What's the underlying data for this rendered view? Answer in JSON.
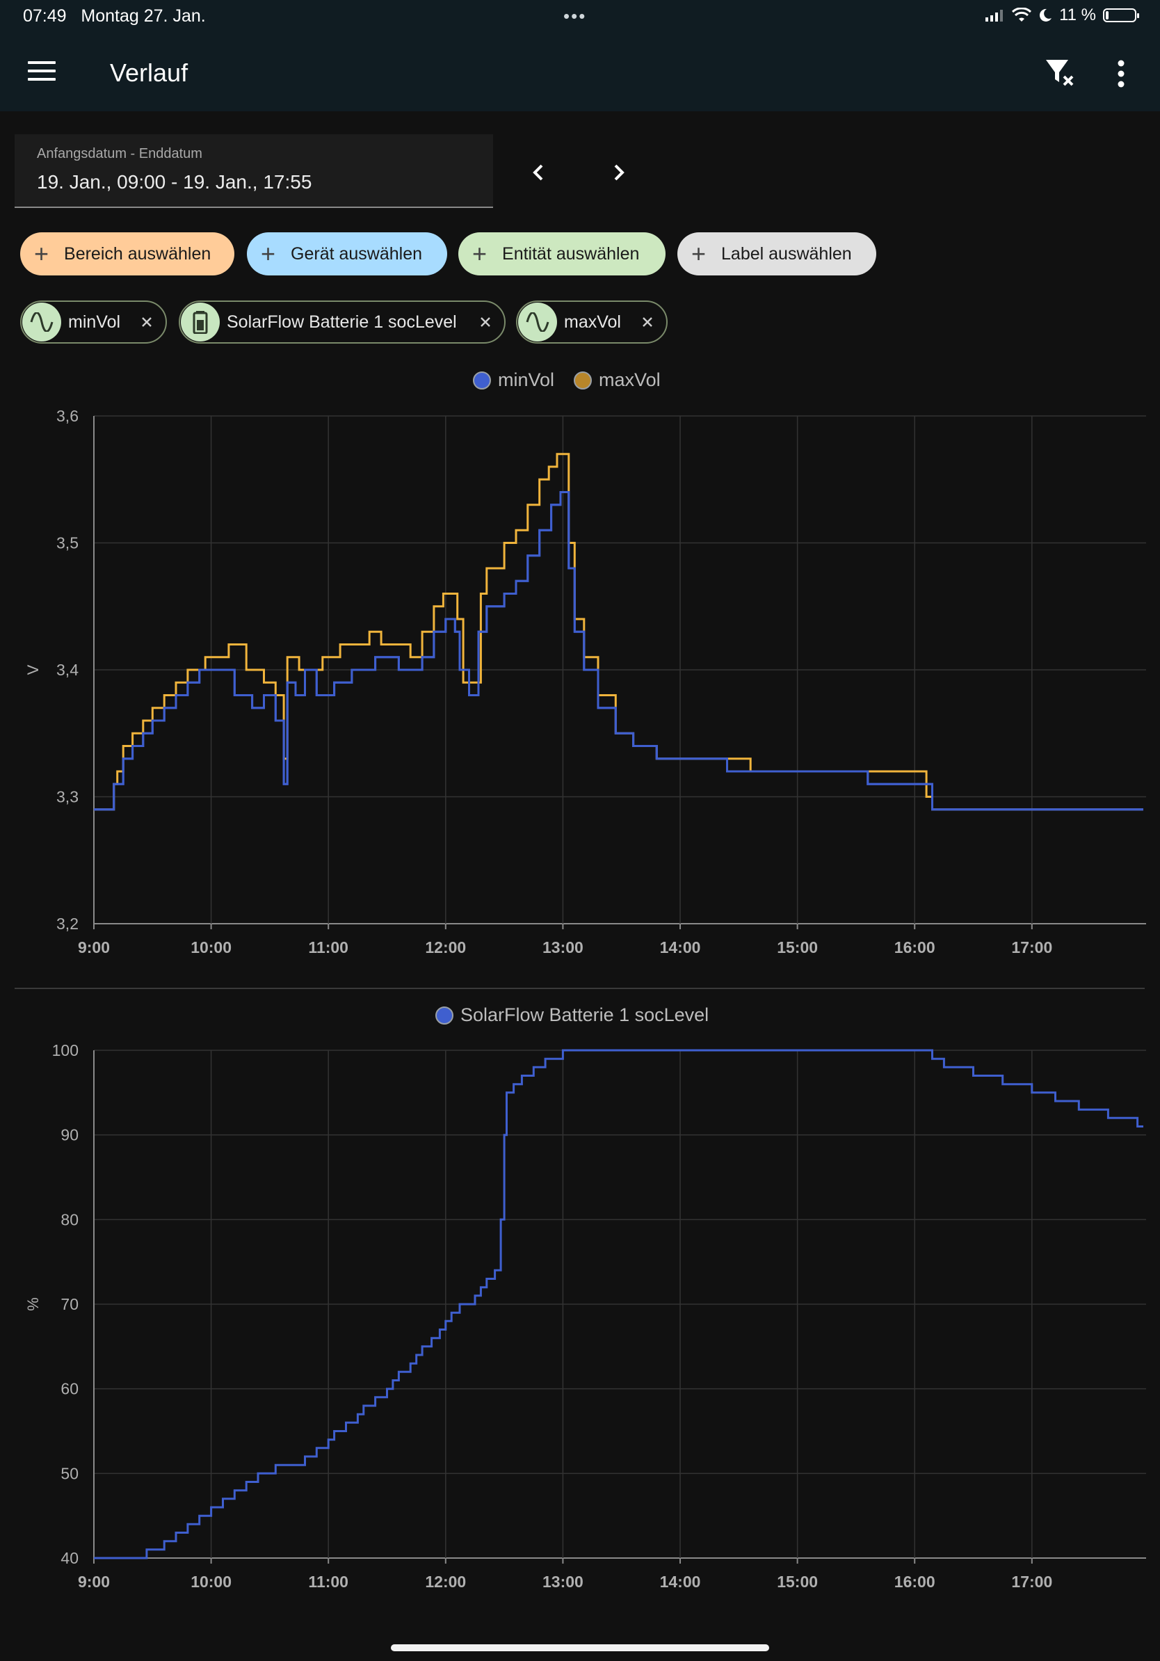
{
  "status_bar": {
    "time": "07:49",
    "date": "Montag 27. Jan.",
    "battery_text": "11 %",
    "battery_level": 0.11
  },
  "app_bar": {
    "title": "Verlauf",
    "menu_icon": "menu-icon",
    "filter_icon": "filter-remove-icon",
    "more_icon": "more-vert-icon"
  },
  "date_range": {
    "label": "Anfangsdatum - Enddatum",
    "value": "19. Jan., 09:00 - 19. Jan., 17:55"
  },
  "target_chips": [
    {
      "label": "Bereich auswählen",
      "color": "#ffcc99"
    },
    {
      "label": "Gerät auswählen",
      "color": "#a8dcff"
    },
    {
      "label": "Entität auswählen",
      "color": "#cde8c0"
    },
    {
      "label": "Label auswählen",
      "color": "#e0e0e0"
    }
  ],
  "entity_chips": [
    {
      "label": "minVol",
      "icon": "sine-wave-icon"
    },
    {
      "label": "SolarFlow Batterie 1 socLevel",
      "icon": "battery-icon"
    },
    {
      "label": "maxVol",
      "icon": "sine-wave-icon"
    }
  ],
  "colors": {
    "min": "#3f5fcf",
    "max": "#f0b43c",
    "soc": "#3f5fcf",
    "grid": "#333333",
    "axis_text": "#b0b0b0"
  },
  "chart_data": [
    {
      "type": "line",
      "step": true,
      "unit": "V",
      "ylim": [
        3.2,
        3.6
      ],
      "yticks": [
        "3,2",
        "3,3",
        "3,4",
        "3,5",
        "3,6"
      ],
      "xlim": [
        9.0,
        17.95
      ],
      "xticks": [
        "9:00",
        "10:00",
        "11:00",
        "12:00",
        "13:00",
        "14:00",
        "15:00",
        "16:00",
        "17:00"
      ],
      "legend_position": "top-center",
      "series": [
        {
          "name": "minVol",
          "color": "#3f5fcf",
          "points": [
            [
              9.0,
              3.29
            ],
            [
              9.17,
              3.31
            ],
            [
              9.25,
              3.33
            ],
            [
              9.33,
              3.34
            ],
            [
              9.42,
              3.35
            ],
            [
              9.5,
              3.36
            ],
            [
              9.6,
              3.37
            ],
            [
              9.7,
              3.38
            ],
            [
              9.8,
              3.39
            ],
            [
              9.9,
              3.4
            ],
            [
              10.2,
              3.38
            ],
            [
              10.35,
              3.37
            ],
            [
              10.45,
              3.38
            ],
            [
              10.55,
              3.36
            ],
            [
              10.62,
              3.31
            ],
            [
              10.65,
              3.39
            ],
            [
              10.72,
              3.38
            ],
            [
              10.8,
              3.4
            ],
            [
              10.9,
              3.38
            ],
            [
              11.05,
              3.39
            ],
            [
              11.2,
              3.4
            ],
            [
              11.4,
              3.41
            ],
            [
              11.6,
              3.4
            ],
            [
              11.8,
              3.41
            ],
            [
              11.9,
              3.43
            ],
            [
              12.0,
              3.44
            ],
            [
              12.08,
              3.43
            ],
            [
              12.12,
              3.4
            ],
            [
              12.2,
              3.38
            ],
            [
              12.28,
              3.43
            ],
            [
              12.35,
              3.45
            ],
            [
              12.5,
              3.46
            ],
            [
              12.6,
              3.47
            ],
            [
              12.7,
              3.49
            ],
            [
              12.8,
              3.51
            ],
            [
              12.9,
              3.53
            ],
            [
              12.98,
              3.54
            ],
            [
              13.05,
              3.48
            ],
            [
              13.1,
              3.43
            ],
            [
              13.18,
              3.4
            ],
            [
              13.3,
              3.37
            ],
            [
              13.45,
              3.35
            ],
            [
              13.6,
              3.34
            ],
            [
              13.8,
              3.33
            ],
            [
              14.4,
              3.32
            ],
            [
              15.6,
              3.31
            ],
            [
              16.15,
              3.29
            ],
            [
              17.9,
              3.29
            ]
          ]
        },
        {
          "name": "maxVol",
          "color": "#f0b43c",
          "points": [
            [
              9.0,
              3.29
            ],
            [
              9.17,
              3.31
            ],
            [
              9.2,
              3.32
            ],
            [
              9.25,
              3.34
            ],
            [
              9.33,
              3.35
            ],
            [
              9.42,
              3.36
            ],
            [
              9.5,
              3.37
            ],
            [
              9.6,
              3.38
            ],
            [
              9.7,
              3.39
            ],
            [
              9.8,
              3.4
            ],
            [
              9.95,
              3.41
            ],
            [
              10.15,
              3.42
            ],
            [
              10.3,
              3.4
            ],
            [
              10.45,
              3.39
            ],
            [
              10.55,
              3.38
            ],
            [
              10.62,
              3.33
            ],
            [
              10.65,
              3.41
            ],
            [
              10.75,
              3.4
            ],
            [
              10.95,
              3.41
            ],
            [
              11.1,
              3.42
            ],
            [
              11.35,
              3.43
            ],
            [
              11.45,
              3.42
            ],
            [
              11.7,
              3.41
            ],
            [
              11.8,
              3.43
            ],
            [
              11.9,
              3.45
            ],
            [
              11.98,
              3.46
            ],
            [
              12.1,
              3.44
            ],
            [
              12.15,
              3.39
            ],
            [
              12.25,
              3.39
            ],
            [
              12.3,
              3.46
            ],
            [
              12.35,
              3.48
            ],
            [
              12.5,
              3.5
            ],
            [
              12.6,
              3.51
            ],
            [
              12.7,
              3.53
            ],
            [
              12.8,
              3.55
            ],
            [
              12.88,
              3.56
            ],
            [
              12.95,
              3.57
            ],
            [
              13.05,
              3.5
            ],
            [
              13.1,
              3.44
            ],
            [
              13.18,
              3.41
            ],
            [
              13.3,
              3.38
            ],
            [
              13.45,
              3.35
            ],
            [
              13.6,
              3.34
            ],
            [
              13.8,
              3.33
            ],
            [
              14.6,
              3.32
            ],
            [
              16.1,
              3.3
            ],
            [
              16.15,
              3.29
            ],
            [
              17.9,
              3.29
            ]
          ]
        }
      ]
    },
    {
      "type": "line",
      "step": true,
      "unit": "%",
      "ylim": [
        40,
        100
      ],
      "yticks": [
        "40",
        "50",
        "60",
        "70",
        "80",
        "90",
        "100"
      ],
      "xlim": [
        9.0,
        17.95
      ],
      "xticks": [
        "9:00",
        "10:00",
        "11:00",
        "12:00",
        "13:00",
        "14:00",
        "15:00",
        "16:00",
        "17:00"
      ],
      "legend_position": "top-center",
      "series": [
        {
          "name": "SolarFlow Batterie 1 socLevel",
          "color": "#3f5fcf",
          "points": [
            [
              9.0,
              40
            ],
            [
              9.45,
              41
            ],
            [
              9.6,
              42
            ],
            [
              9.7,
              43
            ],
            [
              9.8,
              44
            ],
            [
              9.9,
              45
            ],
            [
              10.0,
              46
            ],
            [
              10.1,
              47
            ],
            [
              10.2,
              48
            ],
            [
              10.3,
              49
            ],
            [
              10.4,
              50
            ],
            [
              10.55,
              51
            ],
            [
              10.8,
              52
            ],
            [
              10.9,
              53
            ],
            [
              11.0,
              54
            ],
            [
              11.05,
              55
            ],
            [
              11.15,
              56
            ],
            [
              11.25,
              57
            ],
            [
              11.3,
              58
            ],
            [
              11.4,
              59
            ],
            [
              11.5,
              60
            ],
            [
              11.55,
              61
            ],
            [
              11.6,
              62
            ],
            [
              11.7,
              63
            ],
            [
              11.75,
              64
            ],
            [
              11.8,
              65
            ],
            [
              11.88,
              66
            ],
            [
              11.95,
              67
            ],
            [
              12.0,
              68
            ],
            [
              12.05,
              69
            ],
            [
              12.12,
              70
            ],
            [
              12.25,
              71
            ],
            [
              12.3,
              72
            ],
            [
              12.35,
              73
            ],
            [
              12.42,
              74
            ],
            [
              12.47,
              80
            ],
            [
              12.5,
              90
            ],
            [
              12.52,
              95
            ],
            [
              12.58,
              96
            ],
            [
              12.65,
              97
            ],
            [
              12.75,
              98
            ],
            [
              12.85,
              99
            ],
            [
              13.0,
              100
            ],
            [
              16.15,
              99
            ],
            [
              16.25,
              98
            ],
            [
              16.5,
              97
            ],
            [
              16.75,
              96
            ],
            [
              17.0,
              95
            ],
            [
              17.2,
              94
            ],
            [
              17.4,
              93
            ],
            [
              17.65,
              92
            ],
            [
              17.9,
              91
            ]
          ]
        }
      ]
    }
  ]
}
